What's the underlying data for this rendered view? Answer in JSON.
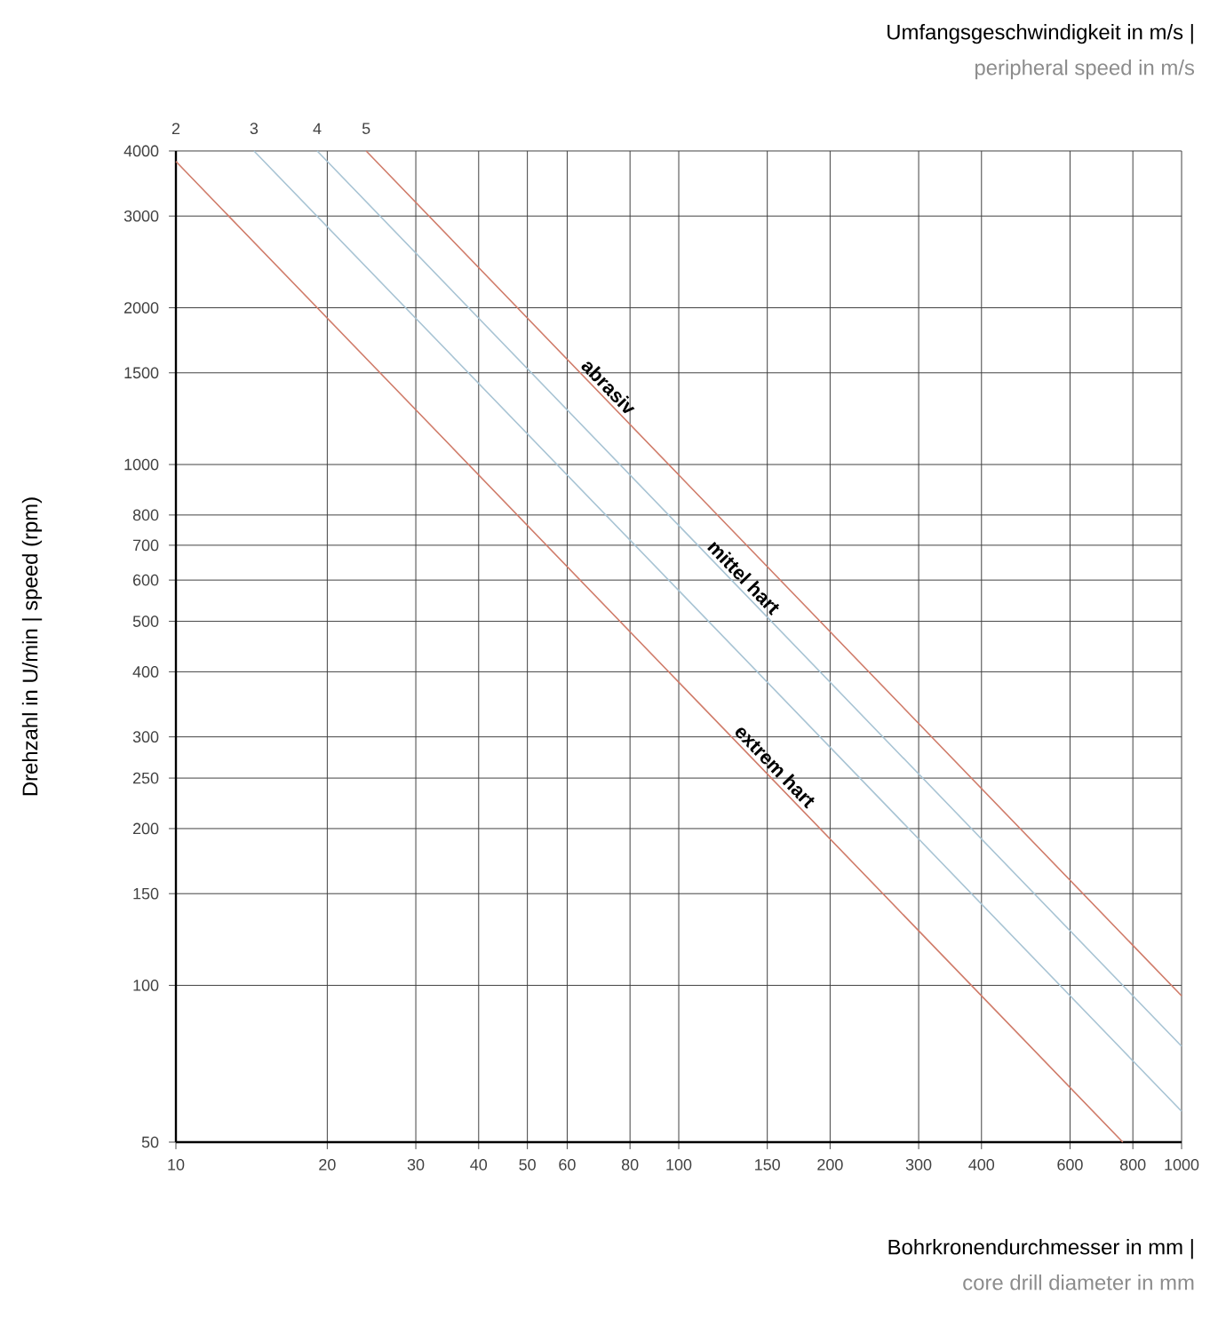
{
  "chart_data": {
    "type": "line",
    "title": "Umfangsgeschwindigkeit in m/s |",
    "subtitle": "peripheral speed in m/s",
    "xlabel": "Bohrkronendurchmesser in mm |",
    "ylabel": "Drehzahl in U/min | speed (rpm)",
    "annotations": [
      {
        "text": "abrasiv",
        "x": 70,
        "y": 1364
      },
      {
        "text": "mittel hart",
        "x": 130,
        "y": 588
      },
      {
        "text": "extrem hart",
        "x": 150,
        "y": 255
      },
      "core drill diameter in mm"
    ],
    "series": [
      {
        "name": "2",
        "color": "#d07c6a",
        "x": [
          10,
          100,
          764
        ],
        "values": [
          3820,
          382,
          50
        ]
      },
      {
        "name": "3",
        "color": "#a8c4d4",
        "x": [
          14.3,
          100,
          1000
        ],
        "values": [
          4000,
          573,
          57.3
        ]
      },
      {
        "name": "4",
        "color": "#a8c4d4",
        "x": [
          19.1,
          100,
          1000
        ],
        "values": [
          4000,
          764,
          76.4
        ]
      },
      {
        "name": "5",
        "color": "#d07c6a",
        "x": [
          23.9,
          100,
          1000
        ],
        "values": [
          4000,
          955,
          95.5
        ]
      }
    ],
    "xlim": [
      10,
      1000
    ],
    "ylim": [
      50,
      4000
    ],
    "xticks": [
      10,
      20,
      30,
      40,
      50,
      60,
      80,
      100,
      150,
      200,
      300,
      400,
      600,
      800,
      1000
    ],
    "yticks": [
      50,
      100,
      150,
      200,
      250,
      300,
      400,
      500,
      600,
      700,
      800,
      1000,
      1500,
      2000,
      3000,
      4000
    ],
    "grid": true,
    "log": "xy"
  }
}
